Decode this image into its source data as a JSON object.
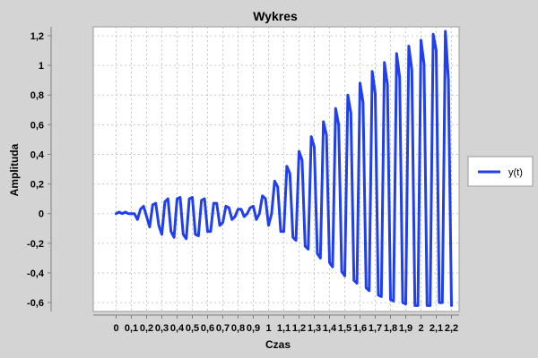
{
  "chart_data": {
    "type": "line",
    "title": "Wykres",
    "xlabel": "Czas",
    "ylabel": "Amplituda",
    "xlim": [
      -0.15,
      2.25
    ],
    "ylim": [
      -0.66,
      1.26
    ],
    "grid": true,
    "legend_position": "right",
    "xticks": [
      {
        "value": 0,
        "label": "0"
      },
      {
        "value": 0.1,
        "label": "0,1"
      },
      {
        "value": 0.2,
        "label": "0,2"
      },
      {
        "value": 0.3,
        "label": "0,3"
      },
      {
        "value": 0.4,
        "label": "0,4"
      },
      {
        "value": 0.5,
        "label": "0,5"
      },
      {
        "value": 0.6,
        "label": "0,6"
      },
      {
        "value": 0.7,
        "label": "0,7"
      },
      {
        "value": 0.8,
        "label": "0,8"
      },
      {
        "value": 0.9,
        "label": "0,9"
      },
      {
        "value": 1.0,
        "label": "1"
      },
      {
        "value": 1.1,
        "label": "1,1"
      },
      {
        "value": 1.2,
        "label": "1,2"
      },
      {
        "value": 1.3,
        "label": "1,3"
      },
      {
        "value": 1.4,
        "label": "1,4"
      },
      {
        "value": 1.5,
        "label": "1,5"
      },
      {
        "value": 1.6,
        "label": "1,6"
      },
      {
        "value": 1.7,
        "label": "1,7"
      },
      {
        "value": 1.8,
        "label": "1,8"
      },
      {
        "value": 1.9,
        "label": "1,9"
      },
      {
        "value": 2.0,
        "label": "2"
      },
      {
        "value": 2.1,
        "label": "2,1"
      },
      {
        "value": 2.2,
        "label": "2,2"
      }
    ],
    "yticks": [
      {
        "value": -0.6,
        "label": "-0,6"
      },
      {
        "value": -0.4,
        "label": "-0,4"
      },
      {
        "value": -0.2,
        "label": "-0,2"
      },
      {
        "value": 0,
        "label": "0"
      },
      {
        "value": 0.2,
        "label": "0,2"
      },
      {
        "value": 0.4,
        "label": "0,4"
      },
      {
        "value": 0.6,
        "label": "0,6"
      },
      {
        "value": 0.8,
        "label": "0,8"
      },
      {
        "value": 1.0,
        "label": "1"
      },
      {
        "value": 1.2,
        "label": "1,2"
      }
    ],
    "series": [
      {
        "name": "y(t)",
        "color": "#1f3ff0",
        "x": [
          0.0,
          0.02,
          0.04,
          0.06,
          0.08,
          0.1,
          0.12,
          0.14,
          0.16,
          0.18,
          0.2,
          0.22,
          0.24,
          0.26,
          0.28,
          0.3,
          0.32,
          0.34,
          0.36,
          0.38,
          0.4,
          0.42,
          0.44,
          0.46,
          0.48,
          0.5,
          0.52,
          0.54,
          0.56,
          0.58,
          0.6,
          0.62,
          0.64,
          0.66,
          0.68,
          0.7,
          0.72,
          0.74,
          0.76,
          0.78,
          0.8,
          0.82,
          0.84,
          0.86,
          0.88,
          0.9,
          0.92,
          0.94,
          0.96,
          0.98,
          1.0,
          1.02,
          1.04,
          1.06,
          1.08,
          1.1,
          1.12,
          1.14,
          1.16,
          1.18,
          1.2,
          1.22,
          1.24,
          1.26,
          1.28,
          1.3,
          1.32,
          1.34,
          1.36,
          1.38,
          1.4,
          1.42,
          1.44,
          1.46,
          1.48,
          1.5,
          1.52,
          1.54,
          1.56,
          1.58,
          1.6,
          1.62,
          1.64,
          1.66,
          1.68,
          1.7,
          1.72,
          1.74,
          1.76,
          1.78,
          1.8,
          1.82,
          1.84,
          1.86,
          1.88,
          1.9,
          1.92,
          1.94,
          1.96,
          1.98,
          2.0,
          2.02,
          2.04,
          2.06,
          2.08,
          2.1,
          2.12,
          2.14,
          2.16,
          2.18,
          2.2
        ],
        "y": [
          0.0,
          0.01,
          0.0,
          0.01,
          0.0,
          0.0,
          0.0,
          -0.04,
          0.03,
          0.05,
          -0.02,
          -0.09,
          0.06,
          0.07,
          -0.08,
          -0.14,
          0.08,
          0.1,
          -0.12,
          -0.16,
          0.1,
          0.11,
          -0.14,
          -0.17,
          0.1,
          0.11,
          -0.14,
          -0.15,
          0.09,
          0.1,
          -0.12,
          -0.12,
          0.07,
          0.07,
          -0.08,
          -0.06,
          0.05,
          0.04,
          -0.04,
          -0.02,
          0.03,
          0.03,
          -0.02,
          0.0,
          0.04,
          0.05,
          -0.04,
          0.0,
          0.12,
          0.1,
          -0.08,
          0.0,
          0.22,
          0.18,
          -0.12,
          -0.12,
          0.32,
          0.27,
          -0.16,
          -0.18,
          0.42,
          0.36,
          -0.22,
          -0.24,
          0.52,
          0.45,
          -0.27,
          -0.3,
          0.62,
          0.53,
          -0.33,
          -0.36,
          0.71,
          0.6,
          -0.39,
          -0.42,
          0.8,
          0.68,
          -0.45,
          -0.47,
          0.88,
          0.75,
          -0.5,
          -0.52,
          0.96,
          0.81,
          -0.55,
          -0.56,
          1.02,
          0.87,
          -0.58,
          -0.59,
          1.08,
          0.92,
          -0.6,
          -0.61,
          1.13,
          0.97,
          -0.62,
          -0.62,
          1.17,
          1.01,
          -0.62,
          -0.62,
          1.21,
          1.1,
          -0.6,
          -0.6,
          1.23,
          0.9,
          -0.62
        ]
      }
    ]
  }
}
